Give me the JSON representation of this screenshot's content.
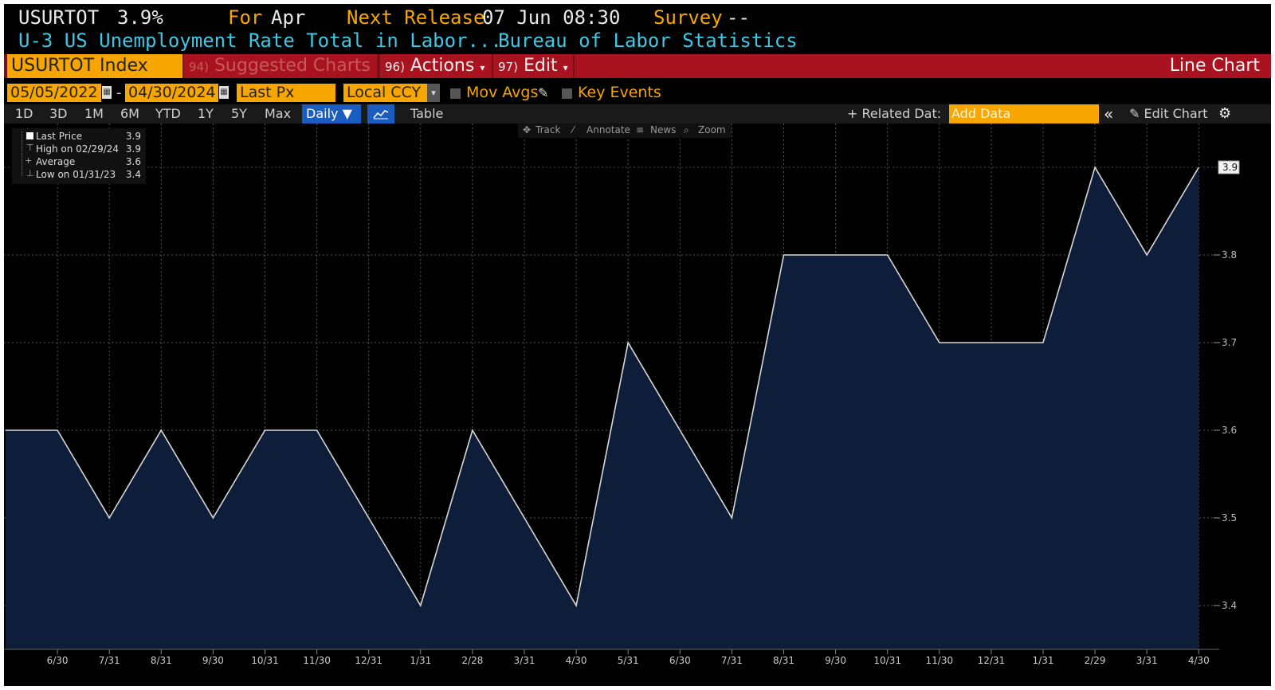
{
  "header": {
    "ticker": "USURTOT",
    "last_value": "3.9%",
    "for_label": "For",
    "for_value": "Apr",
    "next_release_label": "Next Release",
    "next_release_value": "07 Jun 08:30",
    "survey_label": "Survey",
    "survey_value": "--",
    "description": "U-3 US Unemployment Rate Total in Labor...",
    "source": "Bureau of Labor Statistics"
  },
  "command_bar": {
    "security": "USURTOT Index",
    "suggested_num": "94)",
    "suggested_label": "Suggested Charts",
    "actions_num": "96)",
    "actions_label": "Actions",
    "edit_num": "97)",
    "edit_label": "Edit",
    "chart_type": "Line Chart"
  },
  "controls": {
    "start_date": "05/05/2022",
    "date_sep": "-",
    "end_date": "04/30/2024",
    "field": "Last Px",
    "currency": "Local CCY",
    "mov_avgs": "Mov Avgs",
    "key_events": "Key Events"
  },
  "toolbar": {
    "ranges": [
      "1D",
      "3D",
      "1M",
      "6M",
      "YTD",
      "1Y",
      "5Y",
      "Max"
    ],
    "frequency": "Daily",
    "table": "Table",
    "related_data": "+ Related Dat:",
    "add_data_placeholder": "Add Data",
    "edit_chart": "Edit Chart"
  },
  "chart_tools": [
    "Track",
    "Annotate",
    "News",
    "Zoom"
  ],
  "legend": {
    "rows": [
      {
        "label": "Last Price",
        "value": "3.9"
      },
      {
        "label": "High on 02/29/24",
        "value": "3.9"
      },
      {
        "label": "Average",
        "value": "3.6"
      },
      {
        "label": "Low on 01/31/23",
        "value": "3.4"
      }
    ]
  },
  "colors": {
    "background": "#000000",
    "area_fill": "#0e1e3a",
    "line": "#d8d8d8",
    "amber": "#f7a600",
    "cyan": "#3fc7e6",
    "red_bar": "#7a0f1c"
  },
  "chart_data": {
    "type": "area",
    "x": [
      "6/30",
      "7/31",
      "8/31",
      "9/30",
      "10/31",
      "11/30",
      "12/31",
      "1/31",
      "2/28",
      "3/31",
      "4/30",
      "5/31",
      "6/30",
      "7/31",
      "8/31",
      "9/30",
      "10/31",
      "11/30",
      "12/31",
      "1/31",
      "2/29",
      "3/31",
      "4/30"
    ],
    "start_value": 3.6,
    "values": [
      3.6,
      3.5,
      3.6,
      3.5,
      3.6,
      3.6,
      3.5,
      3.4,
      3.6,
      3.5,
      3.4,
      3.7,
      3.6,
      3.5,
      3.8,
      3.8,
      3.8,
      3.7,
      3.7,
      3.7,
      3.9,
      3.8,
      3.9
    ],
    "y_ticks": [
      "3.4",
      "3.5",
      "3.6",
      "3.7",
      "3.8"
    ],
    "ylim": [
      3.35,
      3.95
    ],
    "last_label": "3.9",
    "grid": true
  }
}
